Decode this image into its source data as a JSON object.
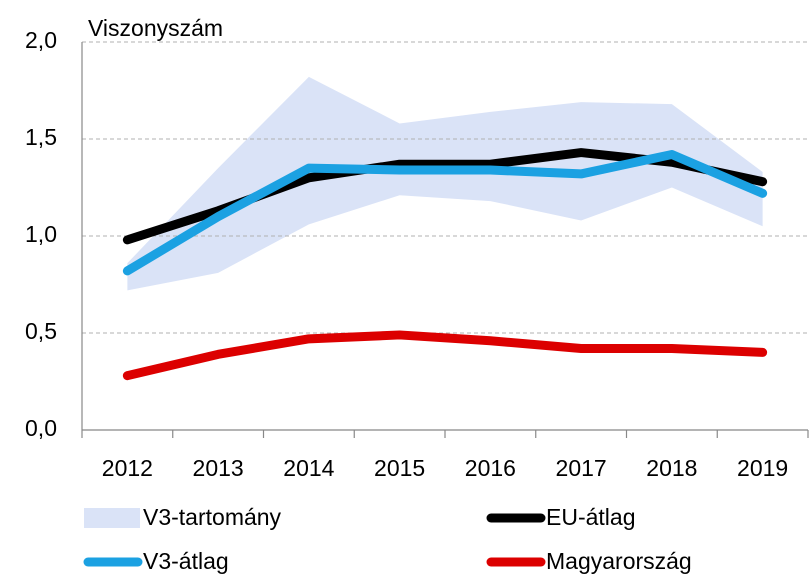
{
  "chart_data": {
    "type": "line",
    "y_label": "Viszonyszám",
    "categories": [
      "2012",
      "2013",
      "2014",
      "2015",
      "2016",
      "2017",
      "2018",
      "2019"
    ],
    "band": {
      "name": "V3-tartomány",
      "color": "#dae3f7",
      "upper": [
        0.86,
        1.35,
        1.82,
        1.58,
        1.64,
        1.69,
        1.68,
        1.33
      ],
      "lower": [
        0.72,
        0.81,
        1.06,
        1.21,
        1.18,
        1.08,
        1.25,
        1.05
      ]
    },
    "series": [
      {
        "name": "EU-átlag",
        "color": "#000000",
        "values": [
          0.98,
          1.13,
          1.3,
          1.37,
          1.37,
          1.43,
          1.38,
          1.28
        ]
      },
      {
        "name": "V3-átlag",
        "color": "#1ba1e2",
        "values": [
          0.82,
          1.1,
          1.35,
          1.34,
          1.34,
          1.32,
          1.42,
          1.22
        ]
      },
      {
        "name": "Magyarország",
        "color": "#dc0000",
        "values": [
          0.28,
          0.39,
          0.47,
          0.49,
          0.46,
          0.42,
          0.42,
          0.4
        ]
      }
    ],
    "ylim": [
      0,
      2
    ],
    "yticks": [
      {
        "value": 0,
        "label": "0,0"
      },
      {
        "value": 0.5,
        "label": "0,5"
      },
      {
        "value": 1,
        "label": "1,0"
      },
      {
        "value": 1.5,
        "label": "1,5"
      },
      {
        "value": 2,
        "label": "2,0"
      }
    ],
    "grid": true
  }
}
